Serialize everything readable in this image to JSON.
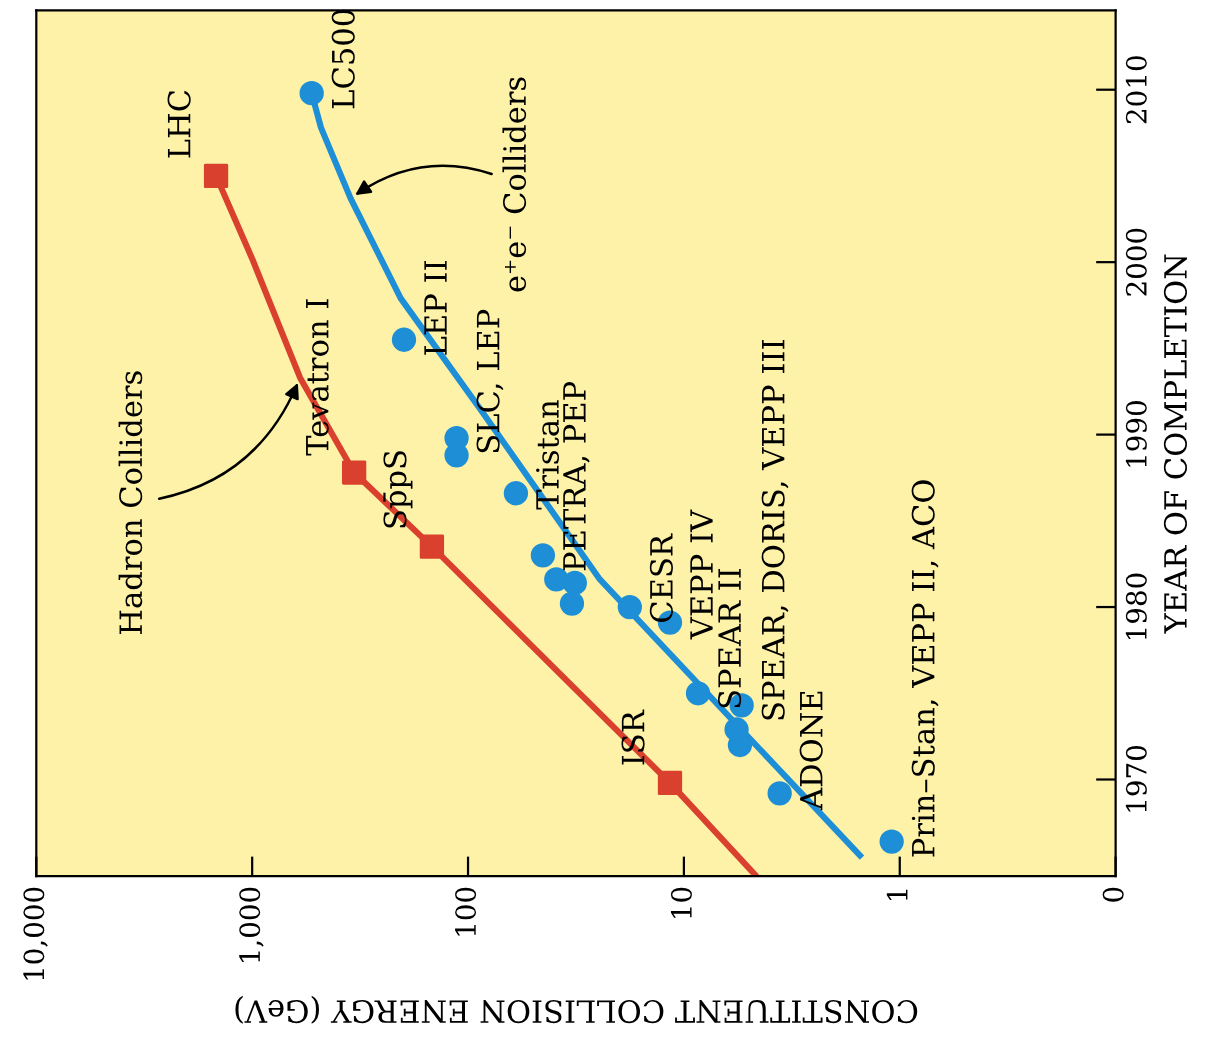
{
  "chart_data": {
    "type": "scatter",
    "xlabel": "CONSTITUENT COLLISION ENERGY (GeV)",
    "ylabel": "YEAR OF COMPLETION",
    "log": "x",
    "xlim": [
      10000,
      0.1
    ],
    "xticks": [
      {
        "value": 10000,
        "label": "10,000"
      },
      {
        "value": 1000,
        "label": "1,000"
      },
      100,
      10,
      1,
      {
        "value": 0.1,
        "label": "0"
      }
    ],
    "ylim": [
      1964.4,
      2014.6
    ],
    "yticks": [
      1970,
      1980,
      1990,
      2000,
      2010
    ],
    "grid": false,
    "series": [
      {
        "type": "line",
        "name": "Hadron Colliders",
        "color": "#d9412e",
        "x": [
          4.7,
          11.6,
          147,
          337,
          600,
          1000,
          1470
        ],
        "values": [
          1964.5,
          1969.8,
          1983.5,
          1987.8,
          1993.3,
          2000.2,
          2005
        ]
      },
      {
        "marker": "square",
        "color": "#d9412e",
        "x": [
          11.6,
          147,
          337,
          1470
        ],
        "values": [
          1969.8,
          1983.5,
          1987.8,
          2005
        ]
      },
      {
        "type": "line",
        "name": "e⁺e⁻ Colliders",
        "color": "#1e8fd6",
        "x": [
          1.53,
          24.5,
          88,
          205,
          350,
          480,
          530
        ],
        "values": [
          1965.6,
          1981.6,
          1991.5,
          1997.9,
          2003.7,
          2007.8,
          2009.8
        ]
      },
      {
        "marker": "circle",
        "color": "#1e8fd6",
        "x": [
          1.09,
          3.6,
          5.5,
          5.7,
          5.4,
          8.6,
          11.6,
          17.8,
          33,
          32,
          39,
          45,
          60,
          113,
          113,
          198,
          530
        ],
        "values": [
          1966.4,
          1969.2,
          1972.0,
          1972.9,
          1974.3,
          1975.0,
          1979.1,
          1980.0,
          1980.2,
          1981.4,
          1981.6,
          1983.0,
          1986.6,
          1989.8,
          1988.8,
          1995.5,
          2009.8
        ]
      }
    ],
    "annotations": [
      {
        "text": "Prin–Stan, VEPP II, ACO",
        "x": 1.09,
        "y": 1966.4
      },
      {
        "text": "ADONE",
        "x": 3.6,
        "y": 1969.2
      },
      {
        "text": "SPEAR, DORIS, VEPP III",
        "x": 5.4,
        "y": 1974.3
      },
      {
        "text": "SPEAR II",
        "x": 8.6,
        "y": 1975.0
      },
      {
        "text": "VEPP IV",
        "x": 11.6,
        "y": 1979.1
      },
      {
        "text": "CESR",
        "x": 17.8,
        "y": 1980.0
      },
      {
        "text": "PETRA, PEP",
        "x": 45,
        "y": 1983.0
      },
      {
        "text": "Tristan",
        "x": 60,
        "y": 1986.6
      },
      {
        "text": "SLC, LEP",
        "x": 113,
        "y": 1989.8
      },
      {
        "text": "LEP II",
        "x": 198,
        "y": 1995.5
      },
      {
        "text": "LC500",
        "x": 530,
        "y": 2009.8
      },
      {
        "text": "ISR",
        "x": 11.6,
        "y": 1969.8
      },
      {
        "text": "Sp̄pS",
        "x": 147,
        "y": 1983.5
      },
      {
        "text": "Tevatron I",
        "x": 337,
        "y": 1987.8
      },
      {
        "text": "LHC",
        "x": 1470,
        "y": 2005
      }
    ]
  }
}
